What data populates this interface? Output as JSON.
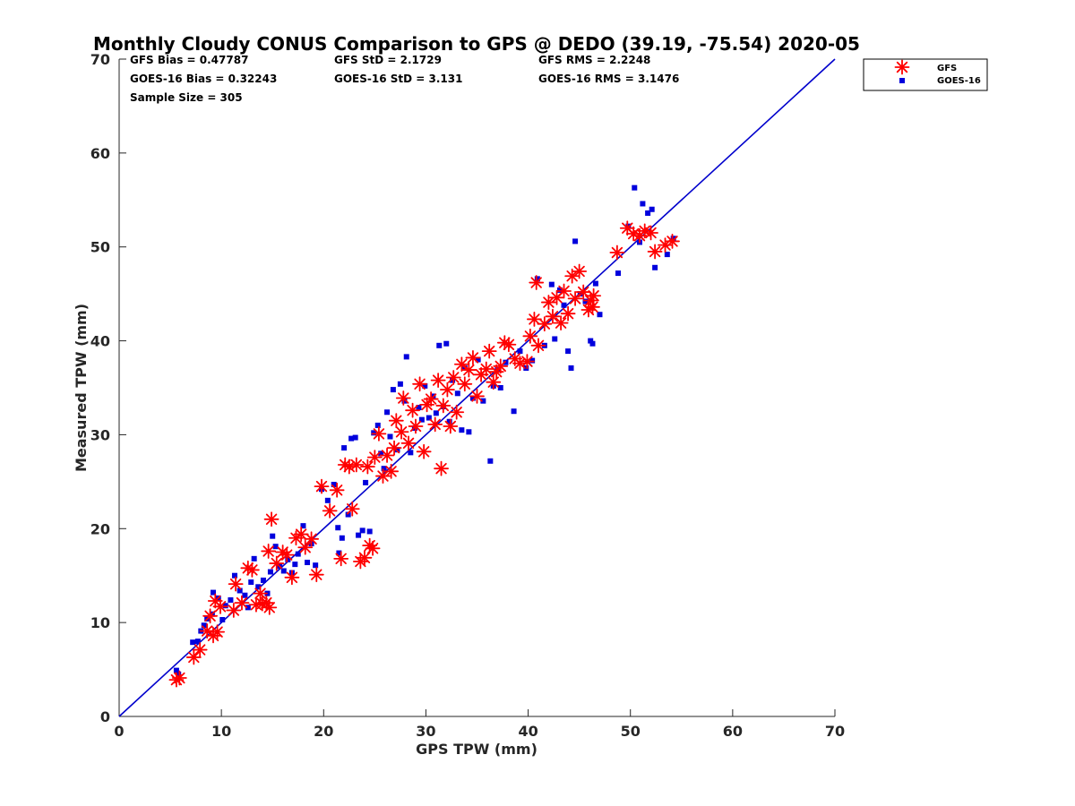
{
  "chart_data": {
    "type": "scatter",
    "title": "Monthly Cloudy CONUS Comparison to GPS @ DEDO (39.19, -75.54) 2020-05",
    "xlabel": "GPS TPW (mm)",
    "ylabel": "Measured TPW (mm)",
    "xlim": [
      0,
      70
    ],
    "ylim": [
      0,
      70
    ],
    "xticks": [
      "0",
      "10",
      "20",
      "30",
      "40",
      "50",
      "60",
      "70"
    ],
    "yticks": [
      "0",
      "10",
      "20",
      "30",
      "40",
      "50",
      "60",
      "70"
    ],
    "grid": false,
    "legend_position": "top-right (outside plot)",
    "stats": {
      "gfs_bias": "GFS Bias = 0.47787",
      "gfs_std": "GFS StD = 2.1729",
      "gfs_rms": "GFS RMS = 2.2248",
      "goes_bias": "GOES-16 Bias = 0.32243",
      "goes_std": "GOES-16 StD = 3.131",
      "goes_rms": "GOES-16 RMS = 3.1476",
      "sample_size": "Sample Size = 305"
    },
    "reference_line": {
      "x": [
        0,
        70
      ],
      "y": [
        0,
        70
      ],
      "color": "#0000cc"
    },
    "series": [
      {
        "name": "GFS",
        "marker": "asterisk",
        "color": "#ff0000",
        "points": [
          [
            5.6,
            3.9
          ],
          [
            5.9,
            4.1
          ],
          [
            7.3,
            6.3
          ],
          [
            7.9,
            7.1
          ],
          [
            8.6,
            9.1
          ],
          [
            9.2,
            8.6
          ],
          [
            9.6,
            9.0
          ],
          [
            8.9,
            10.7
          ],
          [
            9.4,
            12.3
          ],
          [
            9.9,
            11.7
          ],
          [
            11.2,
            11.3
          ],
          [
            11.4,
            14.1
          ],
          [
            12.0,
            12.1
          ],
          [
            12.6,
            15.8
          ],
          [
            13.0,
            15.6
          ],
          [
            13.4,
            11.9
          ],
          [
            13.8,
            13.1
          ],
          [
            14.0,
            12.0
          ],
          [
            14.4,
            12.1
          ],
          [
            14.7,
            11.6
          ],
          [
            14.9,
            21.0
          ],
          [
            14.6,
            17.6
          ],
          [
            15.4,
            16.3
          ],
          [
            16.0,
            17.5
          ],
          [
            16.4,
            17.2
          ],
          [
            16.9,
            14.8
          ],
          [
            17.3,
            19.0
          ],
          [
            17.8,
            19.4
          ],
          [
            18.2,
            18.0
          ],
          [
            18.8,
            18.9
          ],
          [
            19.3,
            15.1
          ],
          [
            19.8,
            24.5
          ],
          [
            20.6,
            21.9
          ],
          [
            21.3,
            24.1
          ],
          [
            21.7,
            16.8
          ],
          [
            22.1,
            26.8
          ],
          [
            22.5,
            26.6
          ],
          [
            22.8,
            22.1
          ],
          [
            23.2,
            26.8
          ],
          [
            23.6,
            16.5
          ],
          [
            24.0,
            16.9
          ],
          [
            24.5,
            18.2
          ],
          [
            24.8,
            17.9
          ],
          [
            24.3,
            26.6
          ],
          [
            25.0,
            27.6
          ],
          [
            25.4,
            30.1
          ],
          [
            25.8,
            25.6
          ],
          [
            26.2,
            27.8
          ],
          [
            26.6,
            26.1
          ],
          [
            26.9,
            28.6
          ],
          [
            27.1,
            31.5
          ],
          [
            27.6,
            30.3
          ],
          [
            27.8,
            33.9
          ],
          [
            28.3,
            29.1
          ],
          [
            28.7,
            32.6
          ],
          [
            29.0,
            30.9
          ],
          [
            29.4,
            35.4
          ],
          [
            29.8,
            28.2
          ],
          [
            30.1,
            33.2
          ],
          [
            30.5,
            33.8
          ],
          [
            30.9,
            31.1
          ],
          [
            31.2,
            35.8
          ],
          [
            31.5,
            26.4
          ],
          [
            31.7,
            33.1
          ],
          [
            32.1,
            34.8
          ],
          [
            32.4,
            30.9
          ],
          [
            32.7,
            36.1
          ],
          [
            33.0,
            32.4
          ],
          [
            33.5,
            37.5
          ],
          [
            33.8,
            35.4
          ],
          [
            34.2,
            36.9
          ],
          [
            34.6,
            38.2
          ],
          [
            35.0,
            34.1
          ],
          [
            35.4,
            36.4
          ],
          [
            35.9,
            37.0
          ],
          [
            36.2,
            38.9
          ],
          [
            36.6,
            35.6
          ],
          [
            36.9,
            36.7
          ],
          [
            37.3,
            37.3
          ],
          [
            37.7,
            39.8
          ],
          [
            38.1,
            39.6
          ],
          [
            38.7,
            38.1
          ],
          [
            39.2,
            37.6
          ],
          [
            39.9,
            37.8
          ],
          [
            40.2,
            40.5
          ],
          [
            40.6,
            42.3
          ],
          [
            41.0,
            39.5
          ],
          [
            40.8,
            46.2
          ],
          [
            41.6,
            41.8
          ],
          [
            42.0,
            44.1
          ],
          [
            42.4,
            42.6
          ],
          [
            42.8,
            44.6
          ],
          [
            43.2,
            41.9
          ],
          [
            43.5,
            45.3
          ],
          [
            43.9,
            42.9
          ],
          [
            44.3,
            46.9
          ],
          [
            44.6,
            44.5
          ],
          [
            45.0,
            47.4
          ],
          [
            45.4,
            45.2
          ],
          [
            45.9,
            43.3
          ],
          [
            46.1,
            44.3
          ],
          [
            46.3,
            43.6
          ],
          [
            46.4,
            44.8
          ],
          [
            48.7,
            49.4
          ],
          [
            49.7,
            52.0
          ],
          [
            50.3,
            51.4
          ],
          [
            50.9,
            51.2
          ],
          [
            51.4,
            51.7
          ],
          [
            52.0,
            51.5
          ],
          [
            52.4,
            49.5
          ],
          [
            53.4,
            50.2
          ],
          [
            54.1,
            50.6
          ]
        ]
      },
      {
        "name": "GOES-16",
        "marker": "square",
        "color": "#0000dd",
        "points": [
          [
            5.6,
            4.9
          ],
          [
            5.8,
            4.5
          ],
          [
            7.2,
            7.9
          ],
          [
            7.7,
            8.0
          ],
          [
            8.0,
            9.1
          ],
          [
            8.3,
            9.7
          ],
          [
            8.6,
            10.4
          ],
          [
            9.1,
            10.9
          ],
          [
            9.2,
            13.2
          ],
          [
            9.7,
            12.6
          ],
          [
            10.1,
            10.3
          ],
          [
            10.4,
            11.8
          ],
          [
            10.9,
            12.4
          ],
          [
            11.3,
            15.0
          ],
          [
            11.8,
            13.4
          ],
          [
            12.3,
            12.9
          ],
          [
            12.6,
            11.6
          ],
          [
            12.9,
            14.3
          ],
          [
            13.2,
            16.8
          ],
          [
            13.6,
            13.8
          ],
          [
            14.1,
            14.5
          ],
          [
            14.5,
            13.1
          ],
          [
            14.8,
            15.4
          ],
          [
            15.0,
            19.2
          ],
          [
            15.3,
            18.1
          ],
          [
            15.7,
            16.0
          ],
          [
            16.1,
            15.5
          ],
          [
            16.5,
            16.7
          ],
          [
            16.9,
            15.3
          ],
          [
            17.2,
            16.2
          ],
          [
            17.5,
            17.3
          ],
          [
            18.0,
            20.3
          ],
          [
            18.4,
            16.4
          ],
          [
            18.8,
            18.4
          ],
          [
            19.2,
            16.1
          ],
          [
            19.8,
            24.2
          ],
          [
            20.4,
            23.0
          ],
          [
            21.0,
            24.7
          ],
          [
            21.4,
            20.1
          ],
          [
            21.8,
            19.0
          ],
          [
            21.5,
            17.4
          ],
          [
            22.0,
            28.6
          ],
          [
            22.4,
            21.5
          ],
          [
            22.7,
            29.6
          ],
          [
            23.1,
            29.7
          ],
          [
            23.4,
            19.3
          ],
          [
            23.8,
            19.8
          ],
          [
            24.1,
            24.9
          ],
          [
            24.5,
            19.7
          ],
          [
            24.9,
            30.2
          ],
          [
            25.3,
            31.0
          ],
          [
            25.6,
            28.0
          ],
          [
            25.9,
            26.4
          ],
          [
            26.2,
            32.4
          ],
          [
            26.5,
            29.8
          ],
          [
            26.8,
            34.8
          ],
          [
            27.2,
            28.4
          ],
          [
            27.5,
            35.4
          ],
          [
            27.9,
            33.6
          ],
          [
            28.1,
            38.3
          ],
          [
            28.5,
            28.1
          ],
          [
            28.9,
            30.7
          ],
          [
            29.3,
            32.9
          ],
          [
            29.6,
            31.6
          ],
          [
            29.9,
            35.2
          ],
          [
            30.3,
            31.8
          ],
          [
            30.7,
            34.1
          ],
          [
            31.0,
            32.3
          ],
          [
            31.3,
            39.5
          ],
          [
            31.7,
            33.0
          ],
          [
            32.0,
            39.7
          ],
          [
            32.3,
            31.4
          ],
          [
            32.6,
            35.8
          ],
          [
            33.1,
            34.4
          ],
          [
            33.5,
            30.5
          ],
          [
            33.8,
            37.1
          ],
          [
            34.2,
            30.3
          ],
          [
            34.6,
            33.9
          ],
          [
            35.1,
            38.0
          ],
          [
            35.6,
            33.6
          ],
          [
            36.3,
            27.2
          ],
          [
            36.6,
            35.2
          ],
          [
            37.0,
            36.9
          ],
          [
            37.3,
            35.0
          ],
          [
            37.8,
            37.7
          ],
          [
            38.6,
            32.5
          ],
          [
            39.2,
            38.9
          ],
          [
            39.8,
            37.1
          ],
          [
            40.4,
            37.9
          ],
          [
            40.9,
            46.6
          ],
          [
            41.6,
            39.5
          ],
          [
            42.3,
            46.0
          ],
          [
            42.6,
            40.2
          ],
          [
            43.1,
            45.4
          ],
          [
            43.5,
            43.8
          ],
          [
            43.9,
            38.9
          ],
          [
            44.2,
            37.1
          ],
          [
            44.6,
            50.6
          ],
          [
            45.1,
            45.0
          ],
          [
            45.6,
            44.2
          ],
          [
            46.1,
            40.0
          ],
          [
            46.3,
            39.7
          ],
          [
            46.6,
            46.1
          ],
          [
            47.0,
            42.8
          ],
          [
            48.8,
            47.2
          ],
          [
            49.8,
            52.2
          ],
          [
            50.4,
            56.3
          ],
          [
            50.9,
            50.5
          ],
          [
            51.2,
            54.6
          ],
          [
            51.7,
            53.6
          ],
          [
            52.1,
            54.0
          ],
          [
            52.4,
            47.8
          ],
          [
            53.6,
            49.2
          ],
          [
            54.2,
            50.9
          ]
        ]
      }
    ]
  }
}
